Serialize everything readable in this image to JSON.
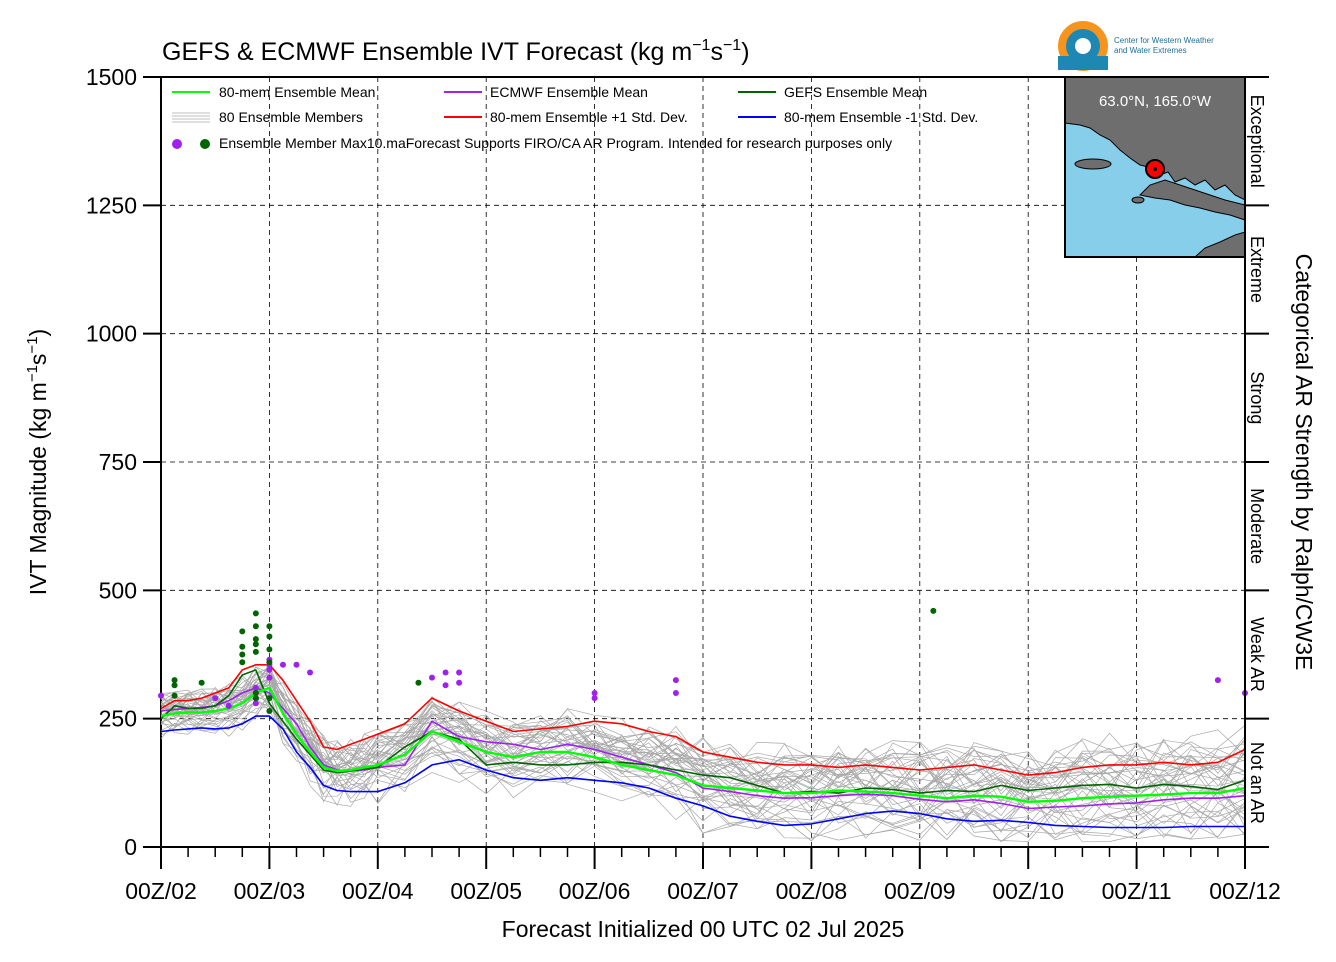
{
  "logo": {
    "line1": "Center for Western Weather",
    "line2": "and Water Extremes"
  },
  "map": {
    "location_label": "63.0°N, 165.0°W",
    "ocean_color": "#87CEEB",
    "land_color": "#6e6e6e",
    "marker_color": "#ff0000"
  },
  "chart_data": {
    "type": "line",
    "title_main": "GEFS & ECMWF Ensemble IVT Forecast (kg m",
    "title_sup1": "−1",
    "title_mid": "s",
    "title_sup2": "−1",
    "title_end": ")",
    "ylabel_main": "IVT Magnitude (kg m",
    "ylabel_sup1": "−1",
    "ylabel_mid": "s",
    "ylabel_sup2": "−1",
    "ylabel_end": ")",
    "xlabel": "Forecast Initialized 00 UTC 02 Jul 2025",
    "right_axis_label": "Categorical AR Strength by Ralph/CW3E",
    "ylim": [
      0,
      1500
    ],
    "yticks": [
      "0",
      "250",
      "500",
      "750",
      "1000",
      "1250",
      "1500"
    ],
    "ytick_values": [
      0,
      250,
      500,
      750,
      1000,
      1250,
      1500
    ],
    "xlim": [
      0,
      240
    ],
    "xticks": [
      "00Z/02",
      "00Z/03",
      "00Z/04",
      "00Z/05",
      "00Z/06",
      "00Z/07",
      "00Z/08",
      "00Z/09",
      "00Z/10",
      "00Z/11",
      "00Z/12"
    ],
    "xtick_hours": [
      0,
      24,
      48,
      72,
      96,
      120,
      144,
      168,
      192,
      216,
      240
    ],
    "grid": true,
    "categories": [
      {
        "label": "Not an AR",
        "from": 0,
        "to": 250
      },
      {
        "label": "Weak AR",
        "from": 250,
        "to": 500
      },
      {
        "label": "Moderate",
        "from": 500,
        "to": 750
      },
      {
        "label": "Strong",
        "from": 750,
        "to": 1000
      },
      {
        "label": "Extreme",
        "from": 1000,
        "to": 1250
      },
      {
        "label": "Exceptional",
        "from": 1250,
        "to": 1500
      }
    ],
    "legend": {
      "position": "top-left",
      "items": [
        {
          "label": "80-mem Ensemble Mean",
          "color": "#00ff00"
        },
        {
          "label": "ECMWF Ensemble Mean",
          "color": "#a020f0"
        },
        {
          "label": "GEFS Ensemble Mean",
          "color": "#006400"
        },
        {
          "label": "80 Ensemble Members",
          "color": "#aaaaaa"
        },
        {
          "label": "80-mem Ensemble +1 Std. Dev.",
          "color": "#ff0000"
        },
        {
          "label": "80-mem Ensemble -1 Std. Dev.",
          "color": "#0000ff"
        }
      ],
      "max_label": "Ensemble Member Max",
      "note": "10.maForecast Supports FIRO/CA AR Program. Intended for research purposes only"
    },
    "series": [
      {
        "name": "80-mem Ensemble Mean",
        "color": "#00ff00",
        "x": [
          0,
          3,
          6,
          9,
          12,
          15,
          18,
          21,
          24,
          27,
          30,
          33,
          36,
          39,
          42,
          45,
          48,
          54,
          60,
          66,
          72,
          78,
          84,
          90,
          96,
          102,
          108,
          114,
          120,
          126,
          132,
          138,
          144,
          150,
          156,
          162,
          168,
          174,
          180,
          186,
          192,
          198,
          204,
          210,
          216,
          222,
          228,
          234,
          240
        ],
        "y": [
          255,
          260,
          262,
          262,
          265,
          270,
          280,
          300,
          310,
          260,
          220,
          185,
          155,
          148,
          150,
          155,
          160,
          180,
          225,
          205,
          185,
          175,
          185,
          185,
          175,
          160,
          150,
          140,
          120,
          115,
          110,
          105,
          105,
          110,
          108,
          105,
          100,
          95,
          100,
          98,
          88,
          90,
          95,
          98,
          100,
          102,
          105,
          105,
          115
        ]
      },
      {
        "name": "ECMWF Ensemble Mean",
        "color": "#a020f0",
        "x": [
          0,
          3,
          6,
          9,
          12,
          15,
          18,
          21,
          24,
          27,
          30,
          33,
          36,
          39,
          42,
          45,
          48,
          54,
          60,
          66,
          72,
          78,
          84,
          90,
          96,
          102,
          108,
          114,
          120,
          126,
          132,
          138,
          144,
          150,
          156,
          162,
          168,
          174,
          180,
          186,
          192,
          198,
          204,
          210,
          216,
          222,
          228,
          234,
          240
        ],
        "y": [
          265,
          268,
          270,
          272,
          275,
          285,
          300,
          310,
          300,
          270,
          240,
          195,
          160,
          150,
          148,
          150,
          155,
          160,
          245,
          215,
          205,
          200,
          190,
          200,
          190,
          175,
          160,
          145,
          115,
          108,
          100,
          95,
          96,
          100,
          103,
          100,
          93,
          88,
          92,
          85,
          75,
          78,
          80,
          84,
          86,
          92,
          95,
          95,
          100
        ]
      },
      {
        "name": "GEFS Ensemble Mean",
        "color": "#006400",
        "x": [
          0,
          3,
          6,
          9,
          12,
          15,
          18,
          21,
          24,
          27,
          30,
          33,
          36,
          39,
          42,
          45,
          48,
          54,
          60,
          66,
          72,
          78,
          84,
          90,
          96,
          102,
          108,
          114,
          120,
          126,
          132,
          138,
          144,
          150,
          156,
          162,
          168,
          174,
          180,
          186,
          192,
          198,
          204,
          210,
          216,
          222,
          228,
          234,
          240
        ],
        "y": [
          250,
          275,
          270,
          270,
          275,
          295,
          335,
          345,
          280,
          245,
          210,
          180,
          150,
          145,
          148,
          152,
          155,
          195,
          225,
          210,
          160,
          165,
          160,
          160,
          165,
          165,
          160,
          150,
          140,
          135,
          120,
          105,
          108,
          105,
          115,
          112,
          105,
          110,
          108,
          120,
          110,
          115,
          120,
          122,
          115,
          122,
          118,
          112,
          130
        ]
      },
      {
        "name": "80-mem Ensemble +1 Std. Dev.",
        "color": "#ff0000",
        "x": [
          0,
          3,
          6,
          9,
          12,
          15,
          18,
          21,
          24,
          27,
          30,
          33,
          36,
          39,
          42,
          45,
          48,
          54,
          60,
          66,
          72,
          78,
          84,
          90,
          96,
          102,
          108,
          114,
          120,
          126,
          132,
          138,
          144,
          150,
          156,
          162,
          168,
          174,
          180,
          186,
          192,
          198,
          204,
          210,
          216,
          222,
          228,
          234,
          240
        ],
        "y": [
          270,
          285,
          285,
          290,
          300,
          310,
          345,
          355,
          355,
          325,
          285,
          245,
          195,
          190,
          200,
          210,
          220,
          240,
          290,
          265,
          245,
          225,
          230,
          235,
          245,
          240,
          225,
          215,
          185,
          175,
          165,
          160,
          160,
          155,
          160,
          155,
          150,
          155,
          160,
          150,
          140,
          145,
          155,
          160,
          160,
          165,
          160,
          165,
          190
        ]
      },
      {
        "name": "80-mem Ensemble -1 Std. Dev.",
        "color": "#0000ff",
        "x": [
          0,
          3,
          6,
          9,
          12,
          15,
          18,
          21,
          24,
          27,
          30,
          33,
          36,
          39,
          42,
          45,
          48,
          54,
          60,
          66,
          72,
          78,
          84,
          90,
          96,
          102,
          108,
          114,
          120,
          126,
          132,
          138,
          144,
          150,
          156,
          162,
          168,
          174,
          180,
          186,
          192,
          198,
          204,
          210,
          216,
          222,
          228,
          234,
          240
        ],
        "y": [
          225,
          228,
          230,
          232,
          230,
          232,
          240,
          255,
          255,
          230,
          185,
          155,
          120,
          110,
          108,
          108,
          108,
          125,
          160,
          170,
          150,
          135,
          130,
          135,
          130,
          125,
          115,
          95,
          80,
          60,
          50,
          42,
          45,
          55,
          65,
          70,
          65,
          55,
          50,
          52,
          48,
          42,
          40,
          38,
          38,
          38,
          40,
          40,
          40
        ]
      }
    ],
    "max_markers": {
      "ecmwf": {
        "color": "#a020f0",
        "x": [
          0,
          12,
          15,
          21,
          21,
          21,
          21,
          24,
          24,
          24,
          24,
          27,
          30,
          33,
          60,
          63,
          63,
          66,
          66,
          96,
          96,
          114,
          114,
          234,
          240
        ],
        "y": [
          295,
          290,
          275,
          280,
          290,
          300,
          310,
          330,
          345,
          355,
          365,
          355,
          355,
          340,
          330,
          340,
          315,
          340,
          320,
          300,
          290,
          325,
          300,
          325,
          300
        ]
      },
      "gefs": {
        "color": "#006400",
        "x": [
          3,
          3,
          3,
          9,
          18,
          18,
          18,
          18,
          21,
          21,
          21,
          21,
          21,
          21,
          21,
          24,
          24,
          24,
          24,
          24,
          24,
          57,
          171
        ],
        "y": [
          295,
          315,
          325,
          320,
          360,
          375,
          390,
          420,
          380,
          395,
          405,
          430,
          455,
          290,
          300,
          430,
          410,
          385,
          360,
          290,
          265,
          320,
          460
        ]
      }
    }
  }
}
